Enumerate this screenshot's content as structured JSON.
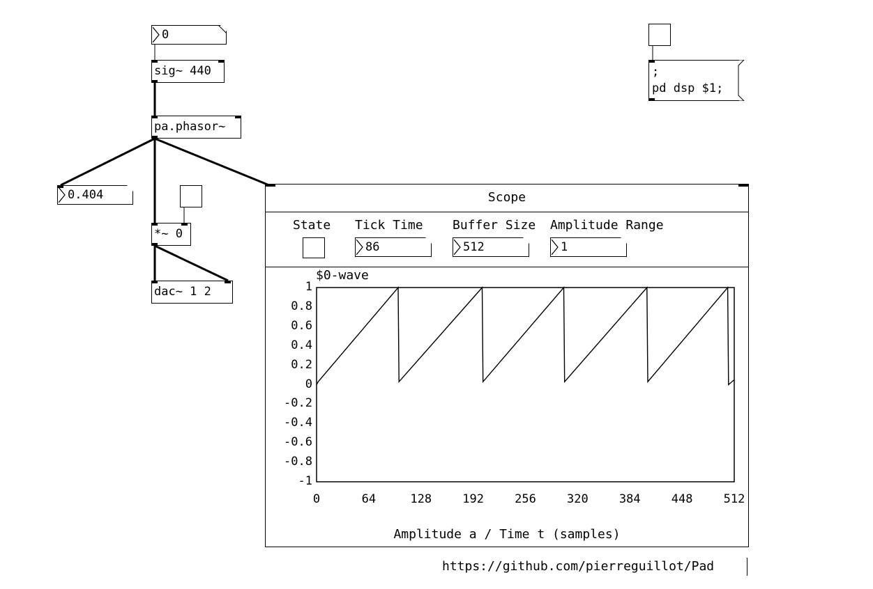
{
  "patch": {
    "top_number": "0",
    "sig_object": "sig~ 440",
    "phasor_object": "pa.phasor~",
    "phasor_readout": "0.404",
    "multiply_object": "*~ 0",
    "dac_object": "dac~ 1 2",
    "dsp_message": ";\npd dsp $1;"
  },
  "scope": {
    "title": "Scope",
    "controls": {
      "state_label": "State",
      "tick_time_label": "Tick Time",
      "tick_time_value": "86",
      "buffer_size_label": "Buffer Size",
      "buffer_size_value": "512",
      "amplitude_range_label": "Amplitude Range",
      "amplitude_range_value": "1"
    },
    "array_name": "$0-wave",
    "xlabel": "Amplitude a / Time t (samples)"
  },
  "url_comment": "https://github.com/pierreguillot/Pad",
  "chart_data": {
    "type": "line",
    "title": "$0-wave",
    "xlabel": "Amplitude a / Time t (samples)",
    "ylabel": "",
    "xlim": [
      0,
      512
    ],
    "ylim": [
      -1,
      1
    ],
    "x_ticks": [
      "0",
      "64",
      "128",
      "192",
      "256",
      "320",
      "384",
      "448",
      "512"
    ],
    "y_ticks": [
      "1",
      "0.8",
      "0.6",
      "0.4",
      "0.2",
      "0",
      "-0.2",
      "-0.4",
      "-0.6",
      "-0.8",
      "-1"
    ],
    "series": [
      {
        "x": [
          0,
          2,
          100,
          101,
          203,
          204,
          303,
          304,
          405,
          406,
          504,
          505,
          512
        ],
        "y": [
          0,
          0.03,
          1.0,
          0.03,
          1.0,
          0.03,
          1.0,
          0.03,
          1.0,
          0.03,
          1.0,
          0.0,
          0.05
        ]
      }
    ]
  }
}
